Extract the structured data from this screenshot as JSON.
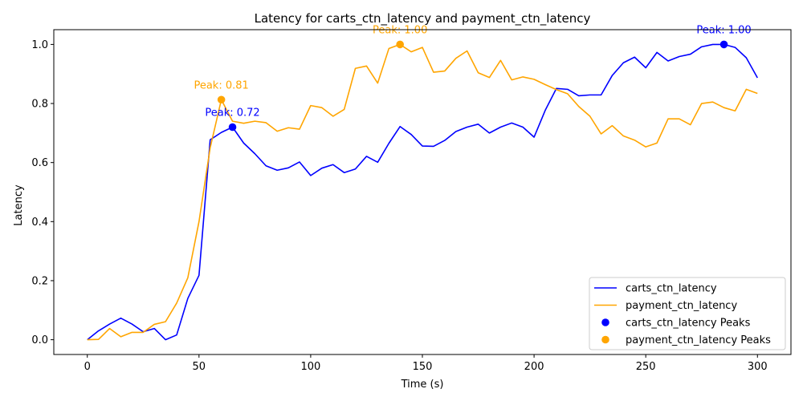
{
  "chart_data": {
    "type": "line",
    "title": "Latency for carts_ctn_latency and payment_ctn_latency",
    "xlabel": "Time (s)",
    "ylabel": "Latency",
    "xlim": [
      -15,
      315
    ],
    "ylim": [
      -0.05,
      1.05
    ],
    "xticks": [
      0,
      50,
      100,
      150,
      200,
      250,
      300
    ],
    "xtick_labels": [
      "0",
      "50",
      "100",
      "150",
      "200",
      "250",
      "300"
    ],
    "yticks": [
      0.0,
      0.2,
      0.4,
      0.6,
      0.8,
      1.0
    ],
    "ytick_labels": [
      "0.0",
      "0.2",
      "0.4",
      "0.6",
      "0.8",
      "1.0"
    ],
    "grid": false,
    "legend_position": "bottom-right",
    "x": [
      0,
      5,
      10,
      15,
      20,
      25,
      30,
      35,
      40,
      45,
      50,
      55,
      60,
      65,
      70,
      75,
      80,
      85,
      90,
      95,
      100,
      105,
      110,
      115,
      120,
      125,
      130,
      135,
      140,
      145,
      150,
      155,
      160,
      165,
      170,
      175,
      180,
      185,
      190,
      195,
      200,
      205,
      210,
      215,
      220,
      225,
      230,
      235,
      240,
      245,
      250,
      255,
      260,
      265,
      270,
      275,
      280,
      285,
      290,
      295,
      300
    ],
    "series": [
      {
        "name": "carts_ctn_latency",
        "color": "#0000ff",
        "values": [
          0.0,
          0.03,
          0.053,
          0.073,
          0.053,
          0.027,
          0.038,
          0.0,
          0.016,
          0.14,
          0.218,
          0.677,
          0.702,
          0.72,
          0.666,
          0.63,
          0.589,
          0.574,
          0.582,
          0.602,
          0.556,
          0.581,
          0.593,
          0.566,
          0.578,
          0.621,
          0.601,
          0.665,
          0.722,
          0.695,
          0.656,
          0.655,
          0.675,
          0.705,
          0.72,
          0.73,
          0.7,
          0.72,
          0.734,
          0.72,
          0.686,
          0.777,
          0.851,
          0.848,
          0.826,
          0.829,
          0.829,
          0.895,
          0.938,
          0.957,
          0.921,
          0.973,
          0.944,
          0.959,
          0.967,
          0.992,
          1.0,
          1.0,
          0.99,
          0.955,
          0.887
        ]
      },
      {
        "name": "payment_ctn_latency",
        "color": "#ffa500",
        "values": [
          0.0,
          0.001,
          0.038,
          0.01,
          0.025,
          0.025,
          0.052,
          0.061,
          0.124,
          0.21,
          0.4,
          0.65,
          0.813,
          0.74,
          0.733,
          0.74,
          0.735,
          0.706,
          0.718,
          0.713,
          0.793,
          0.786,
          0.757,
          0.78,
          0.919,
          0.927,
          0.869,
          0.986,
          1.0,
          0.975,
          0.99,
          0.906,
          0.91,
          0.953,
          0.978,
          0.904,
          0.888,
          0.946,
          0.88,
          0.89,
          0.882,
          0.864,
          0.847,
          0.833,
          0.79,
          0.757,
          0.697,
          0.725,
          0.69,
          0.676,
          0.653,
          0.666,
          0.748,
          0.748,
          0.728,
          0.8,
          0.805,
          0.786,
          0.775,
          0.848,
          0.834
        ]
      }
    ],
    "peaks": [
      {
        "name": "carts_ctn_latency Peaks",
        "series": "carts_ctn_latency",
        "color": "#0000ff",
        "points": [
          {
            "x": 65,
            "y": 0.72,
            "label": "Peak: 0.72"
          },
          {
            "x": 285,
            "y": 1.0,
            "label": "Peak: 1.00"
          }
        ]
      },
      {
        "name": "payment_ctn_latency Peaks",
        "series": "payment_ctn_latency",
        "color": "#ffa500",
        "points": [
          {
            "x": 60,
            "y": 0.813,
            "label": "Peak: 0.81"
          },
          {
            "x": 140,
            "y": 1.0,
            "label": "Peak: 1.00"
          }
        ]
      }
    ],
    "legend": [
      {
        "label": "carts_ctn_latency",
        "kind": "line",
        "color": "#0000ff"
      },
      {
        "label": "payment_ctn_latency",
        "kind": "line",
        "color": "#ffa500"
      },
      {
        "label": "carts_ctn_latency Peaks",
        "kind": "marker",
        "color": "#0000ff"
      },
      {
        "label": "payment_ctn_latency Peaks",
        "kind": "marker",
        "color": "#ffa500"
      }
    ]
  }
}
